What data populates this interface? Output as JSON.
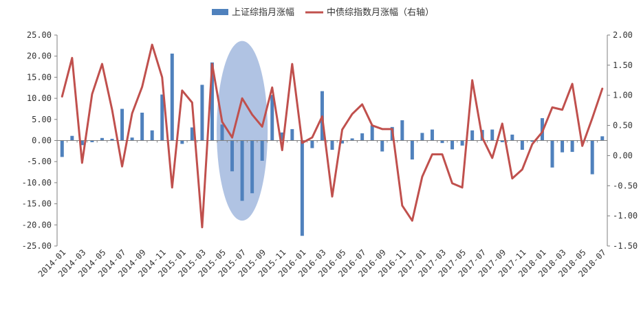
{
  "chart_data": {
    "type": "bar+line",
    "legend": {
      "position": "top-center",
      "entries": [
        "上证综指月涨幅",
        "中债综指数月涨幅（右轴）"
      ]
    },
    "colors": {
      "bar": "#4f81bd",
      "line": "#c0504d",
      "highlight": "#a7bde0"
    },
    "grid": false,
    "x": [
      "2014-01",
      "2014-02",
      "2014-03",
      "2014-04",
      "2014-05",
      "2014-06",
      "2014-07",
      "2014-08",
      "2014-09",
      "2014-10",
      "2014-11",
      "2014-12",
      "2015-01",
      "2015-02",
      "2015-03",
      "2015-04",
      "2015-05",
      "2015-06",
      "2015-07",
      "2015-08",
      "2015-09",
      "2015-10",
      "2015-11",
      "2015-12",
      "2016-01",
      "2016-02",
      "2016-03",
      "2016-04",
      "2016-05",
      "2016-06",
      "2016-07",
      "2016-08",
      "2016-09",
      "2016-10",
      "2016-11",
      "2016-12",
      "2017-01",
      "2017-02",
      "2017-03",
      "2017-04",
      "2017-05",
      "2017-06",
      "2017-07",
      "2017-08",
      "2017-09",
      "2017-10",
      "2017-11",
      "2017-12",
      "2018-01",
      "2018-02",
      "2018-03",
      "2018-04",
      "2018-05",
      "2018-06",
      "2018-07"
    ],
    "x_tick_labels": [
      "2014-01",
      "2014-03",
      "2014-05",
      "2014-07",
      "2014-09",
      "2014-11",
      "2015-01",
      "2015-03",
      "2015-05",
      "2015-07",
      "2015-09",
      "2015-11",
      "2016-01",
      "2016-03",
      "2016-05",
      "2016-07",
      "2016-09",
      "2016-11",
      "2017-01",
      "2017-03",
      "2017-05",
      "2017-07",
      "2017-09",
      "2017-11",
      "2018-01",
      "2018-03",
      "2018-05",
      "2018-07"
    ],
    "left_axis": {
      "range": [
        -25,
        25
      ],
      "ticks": [
        "25.00",
        "20.00",
        "15.00",
        "10.00",
        "5.00",
        "0.00",
        "-5.00",
        "-10.00",
        "-15.00",
        "-20.00",
        "-25.00"
      ],
      "tick_values": [
        25,
        20,
        15,
        10,
        5,
        0,
        -5,
        -10,
        -15,
        -20,
        -25
      ]
    },
    "right_axis": {
      "range": [
        -1.5,
        2.0
      ],
      "ticks": [
        "2.00",
        "1.50",
        "1.00",
        "0.50",
        "0.00",
        "-0.50",
        "-1.00",
        "-1.50"
      ],
      "tick_values": [
        2.0,
        1.5,
        1.0,
        0.5,
        0.0,
        -0.5,
        -1.0,
        -1.5
      ]
    },
    "series": [
      {
        "name": "上证综指月涨幅",
        "type": "bar",
        "axis": "left",
        "values": [
          -3.9,
          1.1,
          -1.1,
          -0.4,
          0.6,
          0.4,
          7.5,
          0.7,
          6.6,
          2.4,
          10.9,
          20.6,
          -0.8,
          3.1,
          13.2,
          18.5,
          3.8,
          -7.3,
          -14.3,
          -12.5,
          -4.8,
          10.8,
          1.9,
          2.7,
          -22.6,
          -1.8,
          11.7,
          -2.2,
          -0.7,
          0.5,
          1.7,
          3.6,
          -2.6,
          3.2,
          4.8,
          -4.5,
          1.8,
          2.6,
          -0.6,
          -2.1,
          -1.2,
          2.4,
          2.5,
          2.6,
          -0.4,
          1.4,
          -2.2,
          -0.3,
          5.3,
          -6.4,
          -2.8,
          -2.7,
          -0.2,
          -8.0,
          1.0
        ]
      },
      {
        "name": "中债综指数月涨幅（右轴）",
        "type": "line",
        "axis": "right",
        "values": [
          0.98,
          1.62,
          -0.12,
          1.02,
          1.52,
          0.76,
          -0.18,
          0.7,
          1.14,
          1.84,
          1.3,
          -0.53,
          1.08,
          0.88,
          -1.19,
          1.52,
          0.56,
          0.3,
          0.95,
          0.68,
          0.48,
          1.13,
          0.09,
          1.52,
          0.21,
          0.3,
          0.65,
          -0.68,
          0.43,
          0.69,
          0.85,
          0.5,
          0.44,
          0.44,
          -0.83,
          -1.08,
          -0.35,
          0.02,
          0.02,
          -0.46,
          -0.53,
          1.25,
          0.3,
          -0.04,
          0.53,
          -0.38,
          -0.23,
          0.19,
          0.39,
          0.8,
          0.76,
          1.19,
          0.16,
          0.62,
          1.11
        ]
      }
    ],
    "annotations": [
      {
        "type": "ellipse",
        "range": [
          "2015-05",
          "2015-09"
        ],
        "y_range": [
          -19,
          23.6
        ]
      }
    ]
  }
}
